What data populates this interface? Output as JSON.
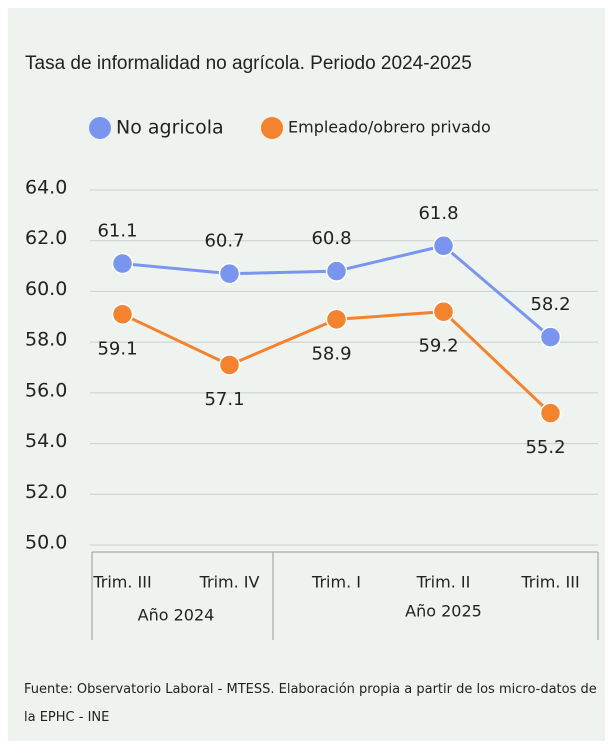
{
  "chart_data": {
    "type": "line",
    "title": "Tasa de informalidad no agrícola. Periodo 2024-2025",
    "groups": [
      {
        "name": "Año 2024",
        "categories": [
          "Trim. III",
          "Trim. IV"
        ]
      },
      {
        "name": "Año 2025",
        "categories": [
          "Trim. I",
          "Trim. II",
          "Trim. III"
        ]
      }
    ],
    "series": [
      {
        "name": "No agricola",
        "color": "#7a95f0",
        "values": [
          61.1,
          60.7,
          60.8,
          61.8,
          58.2
        ]
      },
      {
        "name": "Empleado/obrero privado",
        "color": "#f5822c",
        "values": [
          59.1,
          57.1,
          58.9,
          59.2,
          55.2
        ]
      }
    ],
    "ylim": [
      50,
      64
    ],
    "yticks": [
      {
        "value": 50,
        "label": "50.0"
      },
      {
        "value": 52,
        "label": "52.0"
      },
      {
        "value": 54,
        "label": "54.0"
      },
      {
        "value": 56,
        "label": "56.0"
      },
      {
        "value": 58,
        "label": "58.0"
      },
      {
        "value": 60,
        "label": "60.0"
      },
      {
        "value": 62,
        "label": "62.0"
      },
      {
        "value": 64,
        "label": "64.0"
      }
    ],
    "grid": true,
    "source": "Fuente: Observatorio Laboral - MTESS. Elaboración propia a partir de los micro-datos de la EPHC - INE"
  }
}
